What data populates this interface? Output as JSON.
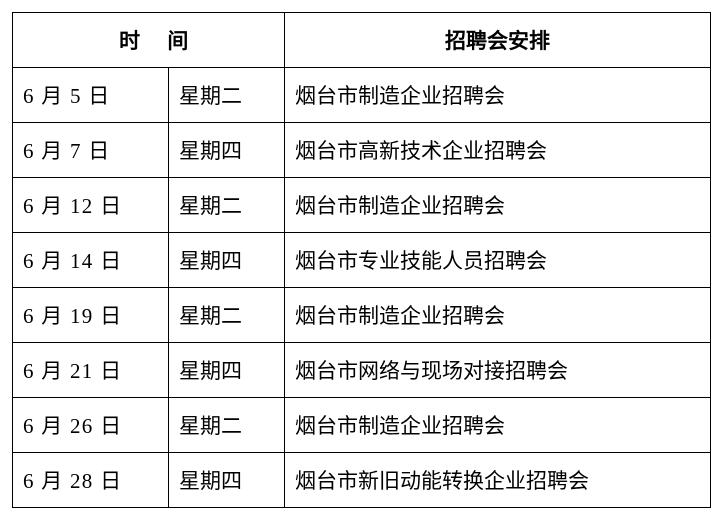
{
  "table": {
    "headers": {
      "time": "时间",
      "event": "招聘会安排"
    },
    "rows": [
      {
        "date": "6 月 5 日",
        "weekday": "星期二",
        "event": "烟台市制造企业招聘会"
      },
      {
        "date": "6 月 7 日",
        "weekday": "星期四",
        "event": "烟台市高新技术企业招聘会"
      },
      {
        "date": "6 月 12 日",
        "weekday": "星期二",
        "event": "烟台市制造企业招聘会"
      },
      {
        "date": "6 月 14 日",
        "weekday": "星期四",
        "event": "烟台市专业技能人员招聘会"
      },
      {
        "date": "6 月 19 日",
        "weekday": "星期二",
        "event": "烟台市制造企业招聘会"
      },
      {
        "date": "6 月 21 日",
        "weekday": "星期四",
        "event": "烟台市网络与现场对接招聘会"
      },
      {
        "date": "6 月 26 日",
        "weekday": "星期二",
        "event": "烟台市制造企业招聘会"
      },
      {
        "date": "6 月 28 日",
        "weekday": "星期四",
        "event": "烟台市新旧动能转换企业招聘会"
      }
    ],
    "colors": {
      "border": "#000000",
      "background": "#ffffff",
      "text": "#000000"
    },
    "fontsize": 21
  }
}
